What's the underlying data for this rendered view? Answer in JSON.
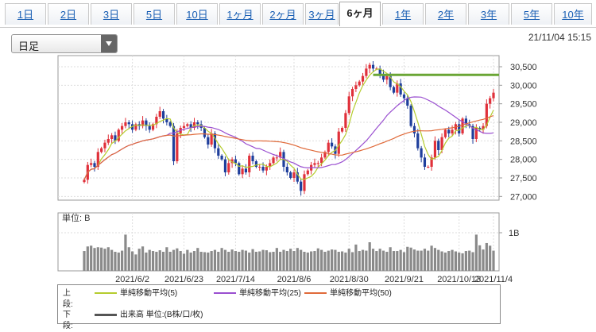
{
  "tabs": [
    {
      "label": "1日"
    },
    {
      "label": "2日"
    },
    {
      "label": "3日"
    },
    {
      "label": "5日"
    },
    {
      "label": "10日"
    },
    {
      "label": "1ヶ月"
    },
    {
      "label": "2ヶ月"
    },
    {
      "label": "3ヶ月"
    },
    {
      "label": "6ヶ月",
      "active": true
    },
    {
      "label": "1年"
    },
    {
      "label": "2年"
    },
    {
      "label": "3年"
    },
    {
      "label": "5年"
    },
    {
      "label": "10年"
    }
  ],
  "selector": {
    "value": "日足"
  },
  "timestamp": "21/11/04 15:15",
  "volume_unit_label": "単位: B",
  "legend": {
    "upper_label": "上段:",
    "lower_label": "下段:",
    "ma5": "単純移動平均(5)",
    "ma25": "単純移動平均(25)",
    "ma50": "単純移動平均(50)",
    "volume": "出来高 単位:(B株/口/枚)"
  },
  "colors": {
    "up": "#e0303a",
    "down": "#1f3f9c",
    "ma5": "#b5cc2e",
    "ma25": "#9a4fd0",
    "ma50": "#e06a3a",
    "volume": "#8a8a8a",
    "level": "#6aa635"
  },
  "chart_data": {
    "type": "candlestick",
    "price_ticks": [
      27000,
      27500,
      28000,
      28500,
      29000,
      29500,
      30000,
      30500
    ],
    "price_range": [
      26900,
      30800
    ],
    "volume_ticks": [
      "1B"
    ],
    "date_labels": [
      "2021/6/2",
      "2021/6/23",
      "2021/7/14",
      "2021/8/6",
      "2021/8/30",
      "2021/9/21",
      "2021/10/13",
      "2021/11/4"
    ],
    "closes": [
      27450,
      27850,
      27900,
      27800,
      28200,
      28300,
      28450,
      28550,
      28650,
      28500,
      28800,
      28900,
      29000,
      28950,
      28800,
      28950,
      28900,
      29050,
      28900,
      28800,
      28950,
      29150,
      29300,
      29100,
      29000,
      28900,
      27950,
      28700,
      28850,
      28900,
      28950,
      28850,
      29000,
      28950,
      28850,
      28600,
      28400,
      28700,
      28300,
      28100,
      28000,
      27650,
      27900,
      28000,
      27900,
      27600,
      27750,
      27650,
      28100,
      27950,
      27800,
      27800,
      27700,
      27800,
      27900,
      28050,
      28050,
      28200,
      27800,
      27650,
      27500,
      27650,
      27400,
      27150,
      27600,
      27700,
      27850,
      27900,
      27900,
      28050,
      28200,
      28450,
      28350,
      28150,
      28750,
      28850,
      29250,
      29700,
      29900,
      30000,
      30100,
      30250,
      30450,
      30550,
      30450,
      30450,
      30300,
      30150,
      30250,
      29950,
      29800,
      30050,
      29750,
      29650,
      29450,
      28900,
      28700,
      28300,
      28050,
      27800,
      27800,
      28050,
      28500,
      28250,
      28600,
      28800,
      28700,
      28800,
      28950,
      28700,
      29100,
      28950,
      28900,
      28550,
      28850,
      28800,
      28900,
      29500,
      29650,
      29800
    ],
    "level_line": 30280,
    "series": [
      {
        "name": "単純移動平均(5)"
      },
      {
        "name": "単純移動平均(25)"
      },
      {
        "name": "単純移動平均(50)"
      }
    ],
    "volumes": [
      0.52,
      0.64,
      0.66,
      0.6,
      0.62,
      0.61,
      0.58,
      0.62,
      0.55,
      0.5,
      0.48,
      0.53,
      0.95,
      0.62,
      0.51,
      0.43,
      0.58,
      0.64,
      0.48,
      0.55,
      0.52,
      0.5,
      0.54,
      0.5,
      0.62,
      0.5,
      0.55,
      0.59,
      0.52,
      0.45,
      0.55,
      0.48,
      0.52,
      0.6,
      0.5,
      0.49,
      0.48,
      0.52,
      0.55,
      0.5,
      0.6,
      0.55,
      0.5,
      0.56,
      0.52,
      0.5,
      0.55,
      0.53,
      0.48,
      0.57,
      0.5,
      0.51,
      0.55,
      0.54,
      0.49,
      0.5,
      0.6,
      0.5,
      0.55,
      0.52,
      0.58,
      0.52,
      0.6,
      0.55,
      0.5,
      0.48,
      0.51,
      0.52,
      0.59,
      0.55,
      0.5,
      0.53,
      0.56,
      0.55,
      0.5,
      0.51,
      0.48,
      0.58,
      0.49,
      0.69,
      0.52,
      0.55,
      0.53,
      0.75,
      0.58,
      0.52,
      0.58,
      0.53,
      0.5,
      0.62,
      0.52,
      0.52,
      0.55,
      0.49,
      0.63,
      0.61,
      0.56,
      0.53,
      0.53,
      0.58,
      0.53,
      0.66,
      0.6,
      0.55,
      0.51,
      0.48,
      0.52,
      0.55,
      0.51,
      0.48,
      0.46,
      0.52,
      0.53,
      0.49,
      0.95,
      0.67,
      0.56,
      0.73,
      0.66,
      0.53
    ]
  }
}
